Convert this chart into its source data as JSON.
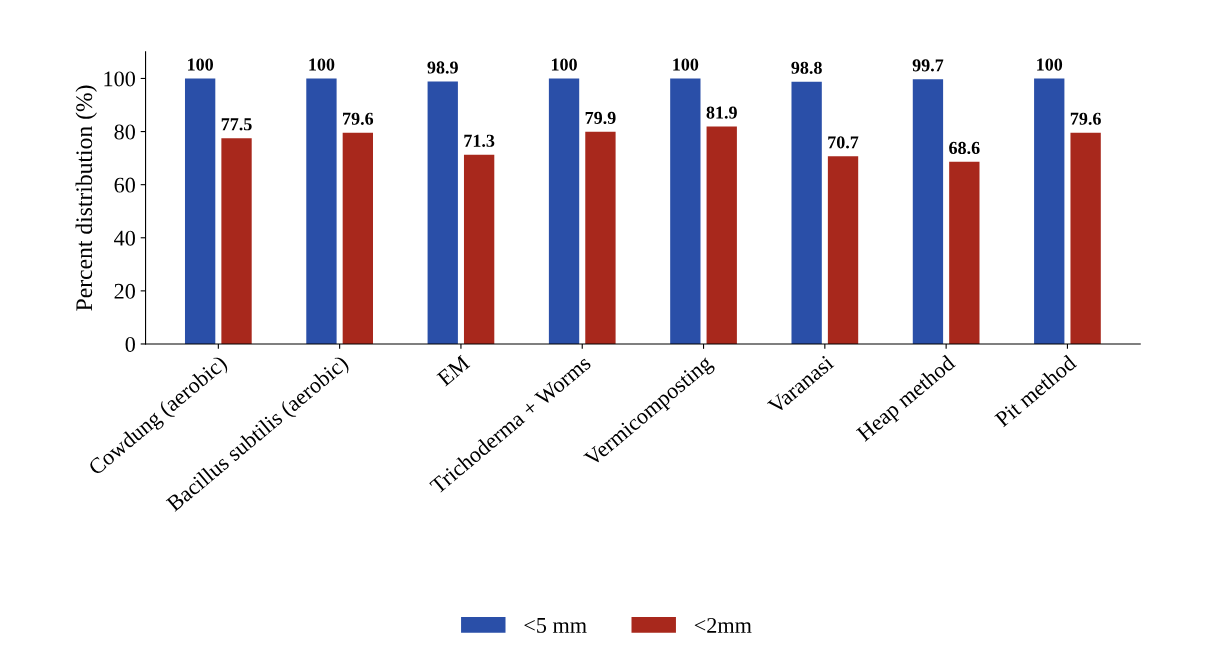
{
  "chart_data": {
    "type": "bar",
    "ylabel": "Percent distribution (%)",
    "categories": [
      "Cowdung (aerobic)",
      "Bacillus subtilis (aerobic)",
      "EM",
      "Trichoderma + Worms",
      "Vermicomposting",
      "Varanasi",
      "Heap method",
      "Pit method"
    ],
    "series": [
      {
        "name": "<5 mm",
        "color": "#2a4fa8",
        "values": [
          100,
          100,
          98.9,
          100,
          100,
          98.8,
          99.7,
          100
        ]
      },
      {
        "name": "<2mm",
        "color": "#a8281c",
        "values": [
          77.5,
          79.6,
          71.3,
          79.9,
          81.9,
          70.7,
          68.6,
          79.6
        ]
      }
    ],
    "ylim": [
      0,
      110
    ],
    "yticks": [
      0,
      20,
      40,
      60,
      80,
      100
    ],
    "grid": false,
    "legend": "bottom",
    "data_labels": true
  }
}
